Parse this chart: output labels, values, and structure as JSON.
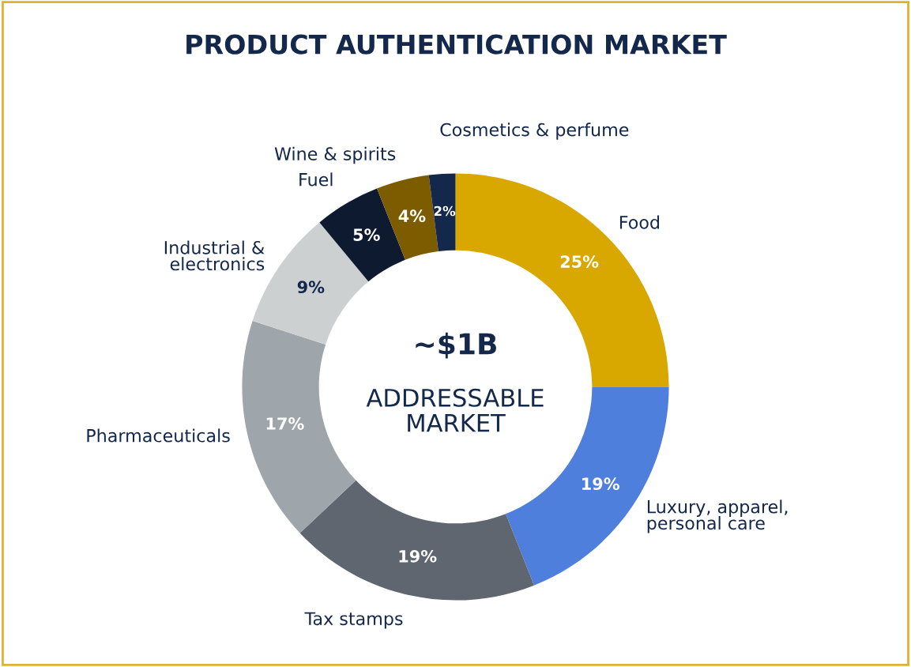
{
  "chart_data": {
    "type": "donut",
    "title": "PRODUCT AUTHENTICATION MARKET",
    "categories": [
      "Food",
      "Luxury, apparel,\npersonal care",
      "Tax stamps",
      "Pharmaceuticals",
      "Industrial &\nelectronics",
      "Fuel",
      "Wine & spirits",
      "Cosmetics & perfume"
    ],
    "values": [
      25,
      19,
      19,
      17,
      9,
      5,
      4,
      2
    ],
    "value_labels": [
      "25%",
      "19%",
      "19%",
      "17%",
      "9%",
      "5%",
      "4%",
      "2%"
    ],
    "colors": [
      "#d9a800",
      "#4f7fdc",
      "#5f6670",
      "#9ea5ab",
      "#cdd0d1",
      "#0d1a30",
      "#7d5c00",
      "#14284c"
    ],
    "annotations": [
      "~$1B",
      "ADDRESSABLE\nMARKET"
    ],
    "legend": false
  }
}
